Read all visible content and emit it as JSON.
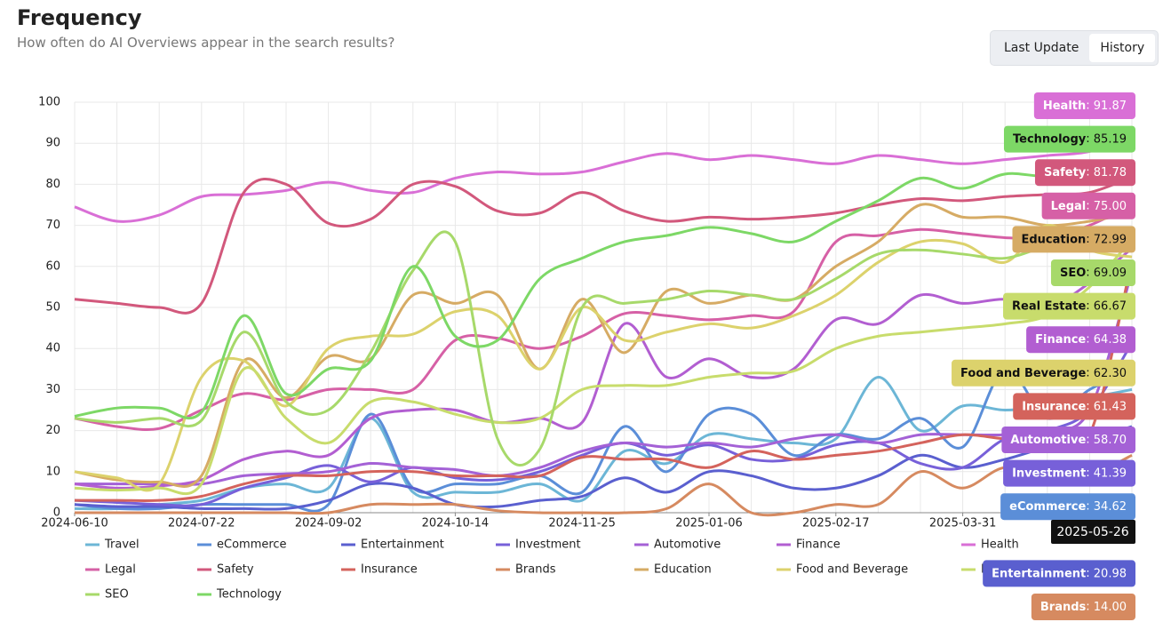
{
  "header": {
    "title": "Frequency",
    "subtitle": "How often do AI Overviews appear in the search results?",
    "buttons": [
      "Last Update",
      "History"
    ]
  },
  "chart_data": {
    "type": "line",
    "smooth": true,
    "grid": true,
    "x": [
      "2024-06-10",
      "2024-06-24",
      "2024-07-08",
      "2024-07-22",
      "2024-08-05",
      "2024-08-19",
      "2024-09-02",
      "2024-09-16",
      "2024-09-30",
      "2024-10-14",
      "2024-10-28",
      "2024-11-11",
      "2024-11-25",
      "2024-12-09",
      "2024-12-23",
      "2025-01-06",
      "2025-01-20",
      "2025-02-03",
      "2025-02-17",
      "2025-03-03",
      "2025-03-17",
      "2025-03-31",
      "2025-04-14",
      "2025-04-28",
      "2025-05-12",
      "2025-05-26"
    ],
    "xlim": [
      "2024-06-10",
      "2025-05-26"
    ],
    "xticks": [
      "2024-06-10",
      "2024-07-22",
      "2024-09-02",
      "2024-10-14",
      "2024-11-25",
      "2025-01-06",
      "2025-02-17",
      "2025-03-31"
    ],
    "ylim": [
      0,
      100
    ],
    "yticks": [
      0,
      10,
      20,
      30,
      40,
      50,
      60,
      70,
      80,
      90,
      100
    ],
    "series": [
      {
        "name": "Travel",
        "color": "#6cb6d6",
        "values": [
          1,
          1,
          2,
          3,
          6,
          7,
          6,
          23,
          5,
          5,
          5,
          7,
          3,
          15,
          12,
          19,
          18,
          17,
          18,
          33,
          20,
          26,
          25,
          26,
          28,
          30
        ]
      },
      {
        "name": "eCommerce",
        "color": "#5b8ed8",
        "values": [
          2,
          1,
          1,
          2,
          2,
          2,
          2,
          24,
          6,
          7,
          7,
          9,
          5,
          21,
          10,
          24,
          24,
          14,
          19,
          18,
          23,
          16,
          35,
          23,
          30,
          34.62
        ]
      },
      {
        "name": "Entertainment",
        "color": "#5a5fcf",
        "values": [
          2,
          1.5,
          1.5,
          1,
          1,
          1,
          3,
          7,
          6,
          2,
          1.5,
          3,
          4,
          8.5,
          5,
          10,
          9,
          6,
          6,
          9,
          14,
          11,
          13,
          16,
          18,
          20.98
        ]
      },
      {
        "name": "Investment",
        "color": "#7760d9",
        "values": [
          3,
          2.5,
          2,
          2,
          6,
          8.5,
          11.5,
          7.5,
          11,
          8.5,
          8,
          10,
          14,
          17,
          14,
          16.5,
          13,
          13,
          16.5,
          17,
          12,
          11,
          18,
          20,
          25,
          41.39
        ]
      },
      {
        "name": "Automotive",
        "color": "#a461d6",
        "values": [
          7,
          7,
          7,
          7,
          9,
          9.5,
          10,
          12,
          11,
          10.5,
          9,
          11,
          15,
          17,
          16,
          17,
          16,
          18,
          19,
          17,
          19,
          19,
          19,
          20,
          25,
          58.7
        ]
      },
      {
        "name": "Finance",
        "color": "#b25ed1",
        "values": [
          7,
          6,
          6.5,
          8,
          13,
          15,
          14,
          23,
          25,
          25,
          22,
          23,
          22,
          46,
          33,
          37.5,
          33,
          35,
          47,
          46,
          53,
          51,
          52,
          50,
          56,
          64.38
        ]
      },
      {
        "name": "Health",
        "color": "#d96fd6",
        "values": [
          74.5,
          71,
          72.5,
          77,
          77.5,
          78.5,
          80.5,
          78.5,
          78,
          81.5,
          83,
          82.5,
          83,
          85.5,
          87.5,
          86,
          87,
          86,
          85,
          87,
          86,
          85,
          86,
          87,
          88,
          91.87
        ]
      },
      {
        "name": "Legal",
        "color": "#d660a6",
        "values": [
          23,
          21,
          20.5,
          25,
          29,
          27.5,
          30,
          30,
          30,
          42,
          42.5,
          40,
          43,
          48.5,
          48,
          47,
          48,
          49,
          66,
          67.5,
          69,
          68,
          67,
          67,
          70,
          75
        ]
      },
      {
        "name": "Safety",
        "color": "#d2587c",
        "values": [
          52,
          51,
          50,
          51,
          78,
          80,
          70.5,
          71.5,
          80,
          79.5,
          73.5,
          73,
          78,
          73.5,
          71,
          72,
          71.5,
          72,
          73,
          75,
          76.5,
          76,
          77,
          77.5,
          78,
          81.78
        ]
      },
      {
        "name": "Insurance",
        "color": "#d4635c",
        "values": [
          3,
          3,
          3,
          4,
          7,
          9,
          9,
          10,
          10,
          9,
          9,
          9,
          13.5,
          13,
          13,
          11,
          15,
          13,
          14,
          15,
          17,
          19,
          18,
          18,
          19,
          61.43
        ]
      },
      {
        "name": "Brands",
        "color": "#d68a60",
        "values": [
          0,
          0,
          0,
          0,
          0,
          0,
          0,
          2,
          2,
          2,
          0.5,
          0,
          0,
          0,
          1,
          7,
          0,
          0,
          2,
          2,
          10,
          6,
          11,
          8,
          9,
          14
        ]
      },
      {
        "name": "Education",
        "color": "#d6ab64",
        "values": [
          10,
          8,
          7.5,
          9,
          37,
          28,
          38,
          37.5,
          53,
          51,
          53,
          35,
          52,
          39,
          54,
          51,
          53,
          52,
          60,
          66,
          75,
          72,
          72,
          70,
          71,
          72.99
        ]
      },
      {
        "name": "Food and Beverage",
        "color": "#dcd26c",
        "values": [
          10,
          8.5,
          7,
          33,
          37,
          26,
          40,
          43,
          43.5,
          49,
          48,
          35,
          50,
          42,
          44,
          46,
          45,
          48,
          53,
          61,
          66,
          65.5,
          61,
          70,
          64,
          62.3
        ]
      },
      {
        "name": "Real Estate",
        "color": "#c8dc6c",
        "values": [
          6,
          5.5,
          6,
          7,
          35,
          23,
          17,
          27,
          27,
          24,
          22,
          23,
          30,
          31,
          31,
          33,
          34,
          34.5,
          40,
          43,
          44,
          45,
          46,
          48,
          55,
          66.67
        ]
      },
      {
        "name": "SEO",
        "color": "#a7d96a",
        "values": [
          23,
          22,
          23,
          22.5,
          44,
          27,
          25,
          39,
          59,
          66,
          18,
          15.5,
          50,
          51,
          52,
          54,
          53,
          52,
          57,
          63,
          64,
          63,
          62,
          65,
          67,
          69.09
        ]
      },
      {
        "name": "Technology",
        "color": "#7dd866",
        "values": [
          23.5,
          25.5,
          25.5,
          24.5,
          48,
          29,
          35,
          37,
          60,
          43,
          42,
          57,
          62,
          66,
          67.5,
          69.5,
          68,
          66,
          71,
          76,
          81.5,
          79,
          82.5,
          82,
          84,
          85.19
        ]
      }
    ],
    "tooltip": {
      "date": "2025-05-26",
      "items": [
        {
          "name": "Health",
          "value": 91.87,
          "label": "91.87"
        },
        {
          "name": "Technology",
          "value": 85.19,
          "label": "85.19"
        },
        {
          "name": "Safety",
          "value": 81.78,
          "label": "81.78"
        },
        {
          "name": "Legal",
          "value": 75,
          "label": "75.00"
        },
        {
          "name": "Education",
          "value": 72.99,
          "label": "72.99"
        },
        {
          "name": "SEO",
          "value": 69.09,
          "label": "69.09"
        },
        {
          "name": "Real Estate",
          "value": 66.67,
          "label": "66.67"
        },
        {
          "name": "Finance",
          "value": 64.38,
          "label": "64.38"
        },
        {
          "name": "Food and Beverage",
          "value": 62.3,
          "label": "62.30"
        },
        {
          "name": "Insurance",
          "value": 61.43,
          "label": "61.43"
        },
        {
          "name": "Automotive",
          "value": 58.7,
          "label": "58.70"
        },
        {
          "name": "Investment",
          "value": 41.39,
          "label": "41.39"
        },
        {
          "name": "eCommerce",
          "value": 34.62,
          "label": "34.62"
        },
        {
          "name": "Entertainment",
          "value": 20.98,
          "label": "20.98"
        },
        {
          "name": "Brands",
          "value": 14,
          "label": "14.00"
        }
      ]
    }
  }
}
